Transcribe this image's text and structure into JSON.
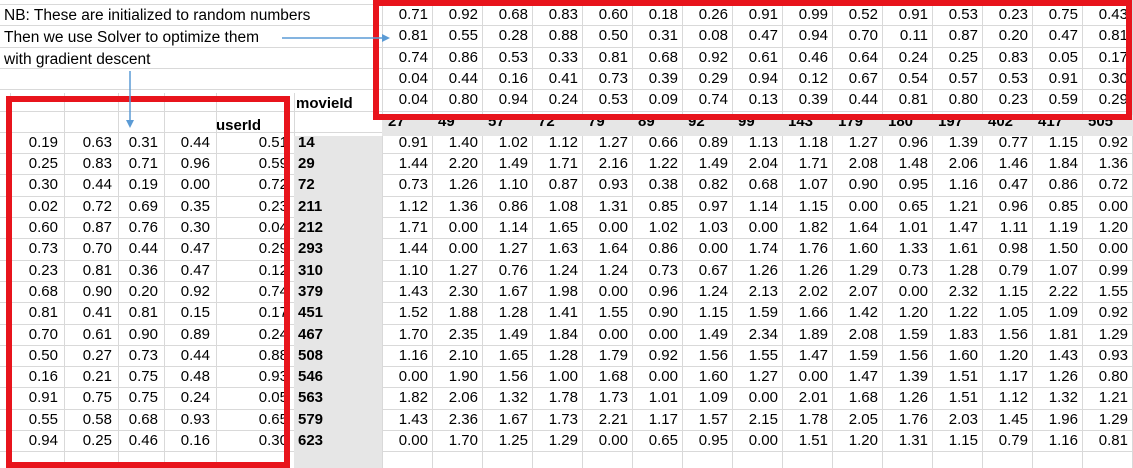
{
  "notes": [
    "NB: These are initialized to random numbers",
    "Then we use Solver to optimize them",
    "with gradient descent"
  ],
  "labels": {
    "movie_header": "movieId",
    "user_header": "userId"
  },
  "colors": {
    "highlight_border": "#e8141c",
    "arrow": "#5b9bd5",
    "header_fill": "#e6e6e6"
  },
  "movie_factors": [
    [
      "0.71",
      "0.92",
      "0.68",
      "0.83",
      "0.60",
      "0.18",
      "0.26",
      "0.91",
      "0.99",
      "0.52",
      "0.91",
      "0.53",
      "0.23",
      "0.75",
      "0.43"
    ],
    [
      "0.81",
      "0.55",
      "0.28",
      "0.88",
      "0.50",
      "0.31",
      "0.08",
      "0.47",
      "0.94",
      "0.70",
      "0.11",
      "0.87",
      "0.20",
      "0.47",
      "0.81"
    ],
    [
      "0.74",
      "0.86",
      "0.53",
      "0.33",
      "0.81",
      "0.68",
      "0.92",
      "0.61",
      "0.46",
      "0.64",
      "0.24",
      "0.25",
      "0.83",
      "0.05",
      "0.17"
    ],
    [
      "0.04",
      "0.44",
      "0.16",
      "0.41",
      "0.73",
      "0.39",
      "0.29",
      "0.94",
      "0.12",
      "0.67",
      "0.54",
      "0.57",
      "0.53",
      "0.91",
      "0.30"
    ],
    [
      "0.04",
      "0.80",
      "0.94",
      "0.24",
      "0.53",
      "0.09",
      "0.74",
      "0.13",
      "0.39",
      "0.44",
      "0.81",
      "0.80",
      "0.23",
      "0.59",
      "0.29"
    ]
  ],
  "movie_ids": [
    "27",
    "49",
    "57",
    "72",
    "79",
    "89",
    "92",
    "99",
    "143",
    "179",
    "180",
    "197",
    "402",
    "417",
    "505"
  ],
  "user_ids": [
    "14",
    "29",
    "72",
    "211",
    "212",
    "293",
    "310",
    "379",
    "451",
    "467",
    "508",
    "546",
    "563",
    "579",
    "623"
  ],
  "user_factors": [
    [
      "0.19",
      "0.63",
      "0.31",
      "0.44",
      "0.51"
    ],
    [
      "0.25",
      "0.83",
      "0.71",
      "0.96",
      "0.59"
    ],
    [
      "0.30",
      "0.44",
      "0.19",
      "0.00",
      "0.72"
    ],
    [
      "0.02",
      "0.72",
      "0.69",
      "0.35",
      "0.23"
    ],
    [
      "0.60",
      "0.87",
      "0.76",
      "0.30",
      "0.04"
    ],
    [
      "0.73",
      "0.70",
      "0.44",
      "0.47",
      "0.29"
    ],
    [
      "0.23",
      "0.81",
      "0.36",
      "0.47",
      "0.12"
    ],
    [
      "0.68",
      "0.90",
      "0.20",
      "0.92",
      "0.74"
    ],
    [
      "0.81",
      "0.41",
      "0.81",
      "0.15",
      "0.17"
    ],
    [
      "0.70",
      "0.61",
      "0.90",
      "0.89",
      "0.24"
    ],
    [
      "0.50",
      "0.27",
      "0.73",
      "0.44",
      "0.88"
    ],
    [
      "0.16",
      "0.21",
      "0.75",
      "0.48",
      "0.93"
    ],
    [
      "0.91",
      "0.75",
      "0.75",
      "0.24",
      "0.05"
    ],
    [
      "0.55",
      "0.58",
      "0.68",
      "0.93",
      "0.65"
    ],
    [
      "0.94",
      "0.25",
      "0.46",
      "0.16",
      "0.30"
    ]
  ],
  "predictions": [
    [
      "0.91",
      "1.40",
      "1.02",
      "1.12",
      "1.27",
      "0.66",
      "0.89",
      "1.13",
      "1.18",
      "1.27",
      "0.96",
      "1.39",
      "0.77",
      "1.15",
      "0.92"
    ],
    [
      "1.44",
      "2.20",
      "1.49",
      "1.71",
      "2.16",
      "1.22",
      "1.49",
      "2.04",
      "1.71",
      "2.08",
      "1.48",
      "2.06",
      "1.46",
      "1.84",
      "1.36"
    ],
    [
      "0.73",
      "1.26",
      "1.10",
      "0.87",
      "0.93",
      "0.38",
      "0.82",
      "0.68",
      "1.07",
      "0.90",
      "0.95",
      "1.16",
      "0.47",
      "0.86",
      "0.72"
    ],
    [
      "1.12",
      "1.36",
      "0.86",
      "1.08",
      "1.31",
      "0.85",
      "0.97",
      "1.14",
      "1.15",
      "0.00",
      "0.65",
      "1.21",
      "0.96",
      "0.85",
      "0.00"
    ],
    [
      "1.71",
      "0.00",
      "1.14",
      "1.65",
      "0.00",
      "1.02",
      "1.03",
      "0.00",
      "1.82",
      "1.64",
      "1.01",
      "1.47",
      "1.11",
      "1.19",
      "1.20"
    ],
    [
      "1.44",
      "0.00",
      "1.27",
      "1.63",
      "1.64",
      "0.86",
      "0.00",
      "1.74",
      "1.76",
      "1.60",
      "1.33",
      "1.61",
      "0.98",
      "1.50",
      "0.00"
    ],
    [
      "1.10",
      "1.27",
      "0.76",
      "1.24",
      "1.24",
      "0.73",
      "0.67",
      "1.26",
      "1.26",
      "1.29",
      "0.73",
      "1.28",
      "0.79",
      "1.07",
      "0.99"
    ],
    [
      "1.43",
      "2.30",
      "1.67",
      "1.98",
      "0.00",
      "0.96",
      "1.24",
      "2.13",
      "2.02",
      "2.07",
      "0.00",
      "2.32",
      "1.15",
      "2.22",
      "1.55"
    ],
    [
      "1.52",
      "1.88",
      "1.28",
      "1.41",
      "1.55",
      "0.90",
      "1.15",
      "1.59",
      "1.66",
      "1.42",
      "1.20",
      "1.22",
      "1.05",
      "1.09",
      "0.92"
    ],
    [
      "1.70",
      "2.35",
      "1.49",
      "1.84",
      "0.00",
      "0.00",
      "1.49",
      "2.34",
      "1.89",
      "2.08",
      "1.59",
      "1.83",
      "1.56",
      "1.81",
      "1.29"
    ],
    [
      "1.16",
      "2.10",
      "1.65",
      "1.28",
      "1.79",
      "0.92",
      "1.56",
      "1.55",
      "1.47",
      "1.59",
      "1.56",
      "1.60",
      "1.20",
      "1.43",
      "0.93"
    ],
    [
      "0.00",
      "1.90",
      "1.56",
      "1.00",
      "1.68",
      "0.00",
      "1.60",
      "1.27",
      "0.00",
      "1.47",
      "1.39",
      "1.51",
      "1.17",
      "1.26",
      "0.80"
    ],
    [
      "1.82",
      "2.06",
      "1.32",
      "1.78",
      "1.73",
      "1.01",
      "1.09",
      "0.00",
      "2.01",
      "1.68",
      "1.26",
      "1.51",
      "1.12",
      "1.32",
      "1.21"
    ],
    [
      "1.43",
      "2.36",
      "1.67",
      "1.73",
      "2.21",
      "1.17",
      "1.57",
      "2.15",
      "1.78",
      "2.05",
      "1.76",
      "2.03",
      "1.45",
      "1.96",
      "1.29"
    ],
    [
      "0.00",
      "1.70",
      "1.25",
      "1.29",
      "0.00",
      "0.65",
      "0.95",
      "0.00",
      "1.51",
      "1.20",
      "1.31",
      "1.15",
      "0.79",
      "1.16",
      "0.81"
    ]
  ]
}
